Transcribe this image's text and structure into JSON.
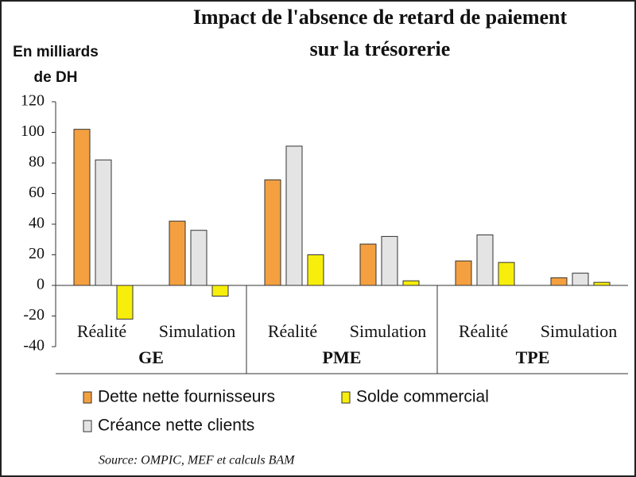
{
  "chart_data": {
    "type": "bar",
    "title": [
      "Impact de l'absence de retard de paiement",
      "sur la trésorerie"
    ],
    "y_label": [
      "En milliards",
      "de DH"
    ],
    "groups": [
      "GE",
      "PME",
      "TPE"
    ],
    "categories": [
      "Réalité",
      "Simulation",
      "Réalité",
      "Simulation",
      "Réalité",
      "Simulation"
    ],
    "series": [
      {
        "name": "Dette nette fournisseurs",
        "color": "#f4a040",
        "values": [
          102,
          42,
          69,
          27,
          16,
          5
        ]
      },
      {
        "name": "Créance nette clients",
        "color": "#e4e4e4",
        "values": [
          82,
          36,
          91,
          32,
          33,
          8
        ]
      },
      {
        "name": "Solde commercial",
        "color": "#f7ee0c",
        "values": [
          -22,
          -7,
          20,
          3,
          15,
          2
        ]
      }
    ],
    "ylim": [
      -40,
      120
    ],
    "yticks": [
      -40,
      -20,
      0,
      20,
      40,
      60,
      80,
      100,
      120
    ],
    "source": "Source: OMPIC, MEF et calculs BAM"
  }
}
